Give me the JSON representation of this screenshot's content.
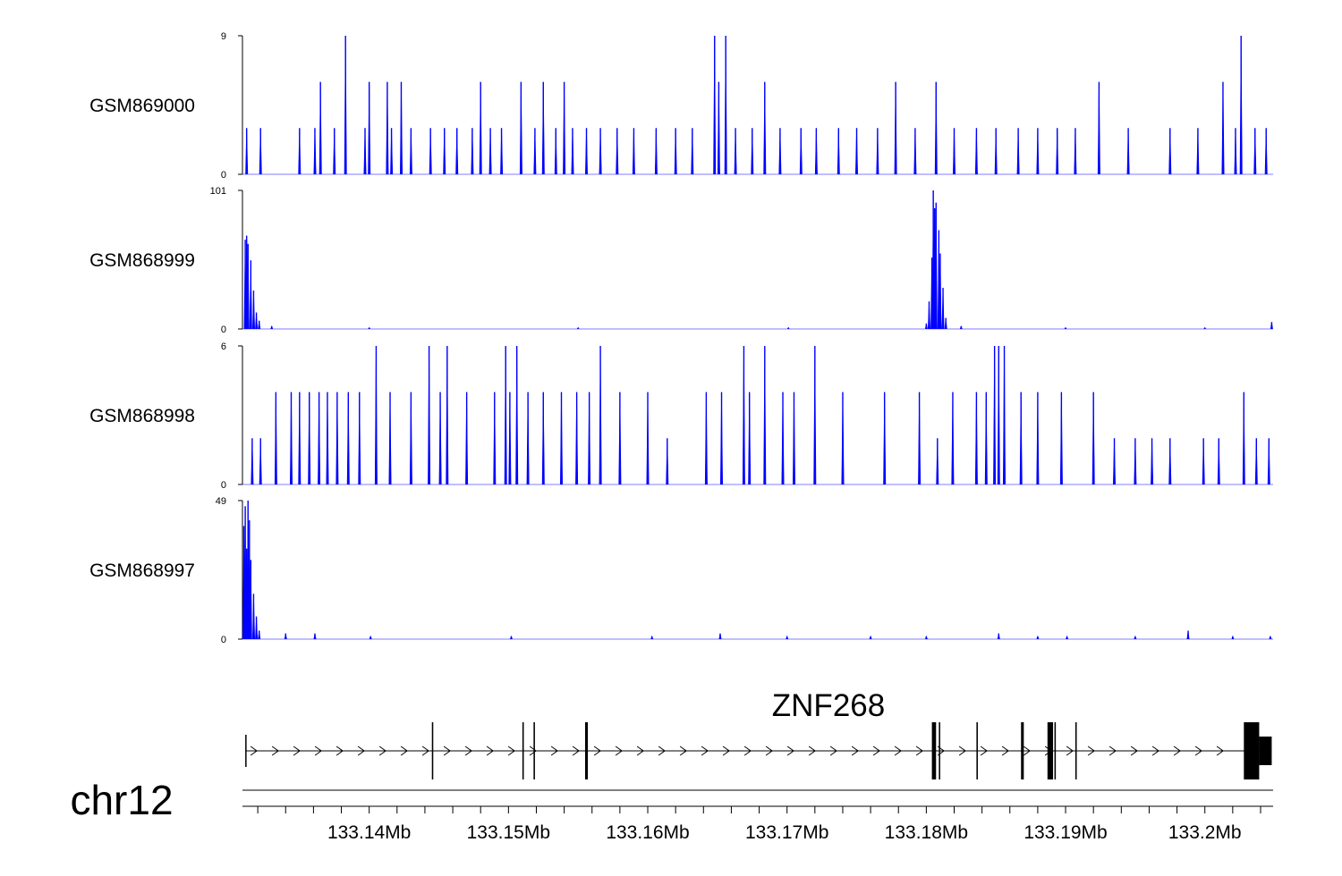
{
  "chart_data": {
    "type": "area",
    "chromosome": "chr12",
    "gene": {
      "name": "ZNF268",
      "strand": "+"
    },
    "x_range_mb": [
      133.1309,
      133.2049
    ],
    "genome_axis": {
      "tick_labels": [
        "133.14Mb",
        "133.15Mb",
        "133.16Mb",
        "133.17Mb",
        "133.18Mb",
        "133.19Mb",
        "133.2Mb"
      ],
      "label_values_mb": [
        133.14,
        133.15,
        133.16,
        133.17,
        133.18,
        133.19,
        133.2
      ],
      "minor_step_mb": 0.002
    },
    "series": [
      {
        "name": "GSM869000",
        "color": "#0000ff",
        "ylim": [
          0,
          9
        ],
        "ytick_labels": [
          "0",
          "9"
        ],
        "baseline": 0,
        "peaks": [
          [
            133.1312,
            3
          ],
          [
            133.1322,
            3
          ],
          [
            133.135,
            3
          ],
          [
            133.1361,
            3
          ],
          [
            133.1365,
            6
          ],
          [
            133.1375,
            3
          ],
          [
            133.1383,
            9
          ],
          [
            133.1397,
            3
          ],
          [
            133.14,
            6
          ],
          [
            133.1413,
            6
          ],
          [
            133.1416,
            3
          ],
          [
            133.1423,
            6
          ],
          [
            133.143,
            3
          ],
          [
            133.1444,
            3
          ],
          [
            133.1454,
            3
          ],
          [
            133.1463,
            3
          ],
          [
            133.1474,
            3
          ],
          [
            133.148,
            6
          ],
          [
            133.1487,
            3
          ],
          [
            133.1495,
            3
          ],
          [
            133.1509,
            6
          ],
          [
            133.1519,
            3
          ],
          [
            133.1525,
            6
          ],
          [
            133.1534,
            3
          ],
          [
            133.154,
            6
          ],
          [
            133.1546,
            3
          ],
          [
            133.1556,
            3
          ],
          [
            133.1566,
            3
          ],
          [
            133.1578,
            3
          ],
          [
            133.159,
            3
          ],
          [
            133.1606,
            3
          ],
          [
            133.162,
            3
          ],
          [
            133.1632,
            3
          ],
          [
            133.1648,
            9
          ],
          [
            133.1651,
            6
          ],
          [
            133.1656,
            9
          ],
          [
            133.1663,
            3
          ],
          [
            133.1675,
            3
          ],
          [
            133.1684,
            6
          ],
          [
            133.1695,
            3
          ],
          [
            133.171,
            3
          ],
          [
            133.1721,
            3
          ],
          [
            133.1737,
            3
          ],
          [
            133.175,
            3
          ],
          [
            133.1765,
            3
          ],
          [
            133.1778,
            6
          ],
          [
            133.1792,
            3
          ],
          [
            133.1807,
            6
          ],
          [
            133.182,
            3
          ],
          [
            133.1836,
            3
          ],
          [
            133.185,
            3
          ],
          [
            133.1866,
            3
          ],
          [
            133.188,
            3
          ],
          [
            133.1894,
            3
          ],
          [
            133.1907,
            3
          ],
          [
            133.1924,
            6
          ],
          [
            133.1945,
            3
          ],
          [
            133.1975,
            3
          ],
          [
            133.1995,
            3
          ],
          [
            133.2013,
            6
          ],
          [
            133.2022,
            3
          ],
          [
            133.2026,
            9
          ],
          [
            133.2036,
            3
          ],
          [
            133.2044,
            3
          ]
        ]
      },
      {
        "name": "GSM868999",
        "color": "#0000ff",
        "ylim": [
          0,
          101
        ],
        "ytick_labels": [
          "0",
          "101"
        ],
        "baseline": 0,
        "peaks": [
          [
            133.1311,
            65
          ],
          [
            133.1312,
            68
          ],
          [
            133.1313,
            62
          ],
          [
            133.1315,
            50
          ],
          [
            133.1317,
            28
          ],
          [
            133.1319,
            12
          ],
          [
            133.1321,
            6
          ],
          [
            133.133,
            2
          ],
          [
            133.14,
            1
          ],
          [
            133.155,
            1
          ],
          [
            133.1701,
            1
          ],
          [
            133.18,
            4
          ],
          [
            133.1802,
            20
          ],
          [
            133.1804,
            52
          ],
          [
            133.1805,
            101
          ],
          [
            133.1806,
            88
          ],
          [
            133.1807,
            92
          ],
          [
            133.1809,
            72
          ],
          [
            133.181,
            55
          ],
          [
            133.1812,
            30
          ],
          [
            133.1814,
            8
          ],
          [
            133.1825,
            2
          ],
          [
            133.19,
            1
          ],
          [
            133.2,
            1
          ],
          [
            133.2048,
            5
          ]
        ]
      },
      {
        "name": "GSM868998",
        "color": "#0000ff",
        "ylim": [
          0,
          6
        ],
        "ytick_labels": [
          "0",
          "6"
        ],
        "baseline": 0,
        "peaks": [
          [
            133.1316,
            2
          ],
          [
            133.1322,
            2
          ],
          [
            133.1333,
            4
          ],
          [
            133.1344,
            4
          ],
          [
            133.135,
            4
          ],
          [
            133.1357,
            4
          ],
          [
            133.1364,
            4
          ],
          [
            133.137,
            4
          ],
          [
            133.1377,
            4
          ],
          [
            133.1385,
            4
          ],
          [
            133.1393,
            4
          ],
          [
            133.1405,
            6
          ],
          [
            133.1415,
            4
          ],
          [
            133.143,
            4
          ],
          [
            133.1443,
            6
          ],
          [
            133.1451,
            4
          ],
          [
            133.1456,
            6
          ],
          [
            133.147,
            4
          ],
          [
            133.149,
            4
          ],
          [
            133.1498,
            6
          ],
          [
            133.1501,
            4
          ],
          [
            133.1506,
            6
          ],
          [
            133.1514,
            4
          ],
          [
            133.1525,
            4
          ],
          [
            133.1538,
            4
          ],
          [
            133.1549,
            4
          ],
          [
            133.1558,
            4
          ],
          [
            133.1566,
            6
          ],
          [
            133.158,
            4
          ],
          [
            133.16,
            4
          ],
          [
            133.1614,
            2
          ],
          [
            133.1642,
            4
          ],
          [
            133.1653,
            4
          ],
          [
            133.1669,
            6
          ],
          [
            133.1673,
            4
          ],
          [
            133.1684,
            6
          ],
          [
            133.1697,
            4
          ],
          [
            133.1705,
            4
          ],
          [
            133.172,
            6
          ],
          [
            133.174,
            4
          ],
          [
            133.177,
            4
          ],
          [
            133.1795,
            4
          ],
          [
            133.1808,
            2
          ],
          [
            133.1819,
            4
          ],
          [
            133.1836,
            4
          ],
          [
            133.1843,
            4
          ],
          [
            133.1849,
            6
          ],
          [
            133.1852,
            6
          ],
          [
            133.1856,
            6
          ],
          [
            133.1868,
            4
          ],
          [
            133.188,
            4
          ],
          [
            133.1897,
            4
          ],
          [
            133.192,
            4
          ],
          [
            133.1935,
            2
          ],
          [
            133.195,
            2
          ],
          [
            133.1962,
            2
          ],
          [
            133.1975,
            2
          ],
          [
            133.1999,
            2
          ],
          [
            133.201,
            2
          ],
          [
            133.2028,
            4
          ],
          [
            133.2037,
            2
          ],
          [
            133.2046,
            2
          ]
        ]
      },
      {
        "name": "GSM868997",
        "color": "#0000ff",
        "ylim": [
          0,
          49
        ],
        "ytick_labels": [
          "0",
          "49"
        ],
        "baseline": 0,
        "peaks": [
          [
            133.131,
            40
          ],
          [
            133.1311,
            47
          ],
          [
            133.1312,
            32
          ],
          [
            133.1313,
            49
          ],
          [
            133.1314,
            42
          ],
          [
            133.1315,
            28
          ],
          [
            133.1317,
            16
          ],
          [
            133.1319,
            8
          ],
          [
            133.1321,
            3
          ],
          [
            133.134,
            2
          ],
          [
            133.1361,
            2
          ],
          [
            133.1401,
            1
          ],
          [
            133.1502,
            1
          ],
          [
            133.1603,
            1
          ],
          [
            133.1652,
            2
          ],
          [
            133.17,
            1
          ],
          [
            133.176,
            1
          ],
          [
            133.18,
            1
          ],
          [
            133.1852,
            2
          ],
          [
            133.188,
            1
          ],
          [
            133.1901,
            1
          ],
          [
            133.195,
            1
          ],
          [
            133.1988,
            3
          ],
          [
            133.202,
            1
          ],
          [
            133.2047,
            1
          ]
        ]
      }
    ],
    "gene_model": {
      "exons_mb": [
        [
          133.1311,
          133.1312
        ],
        [
          133.1445,
          133.1446
        ],
        [
          133.151,
          133.1511
        ],
        [
          133.1518,
          133.1519
        ],
        [
          133.1555,
          133.1557
        ],
        [
          133.1804,
          133.1807
        ],
        [
          133.1809,
          133.181
        ],
        [
          133.1836,
          133.1837
        ],
        [
          133.1868,
          133.187
        ],
        [
          133.1887,
          133.1891
        ],
        [
          133.1892,
          133.1893
        ],
        [
          133.1907,
          133.1908
        ],
        [
          133.2028,
          133.2039
        ],
        [
          133.2039,
          133.2048
        ]
      ]
    }
  }
}
